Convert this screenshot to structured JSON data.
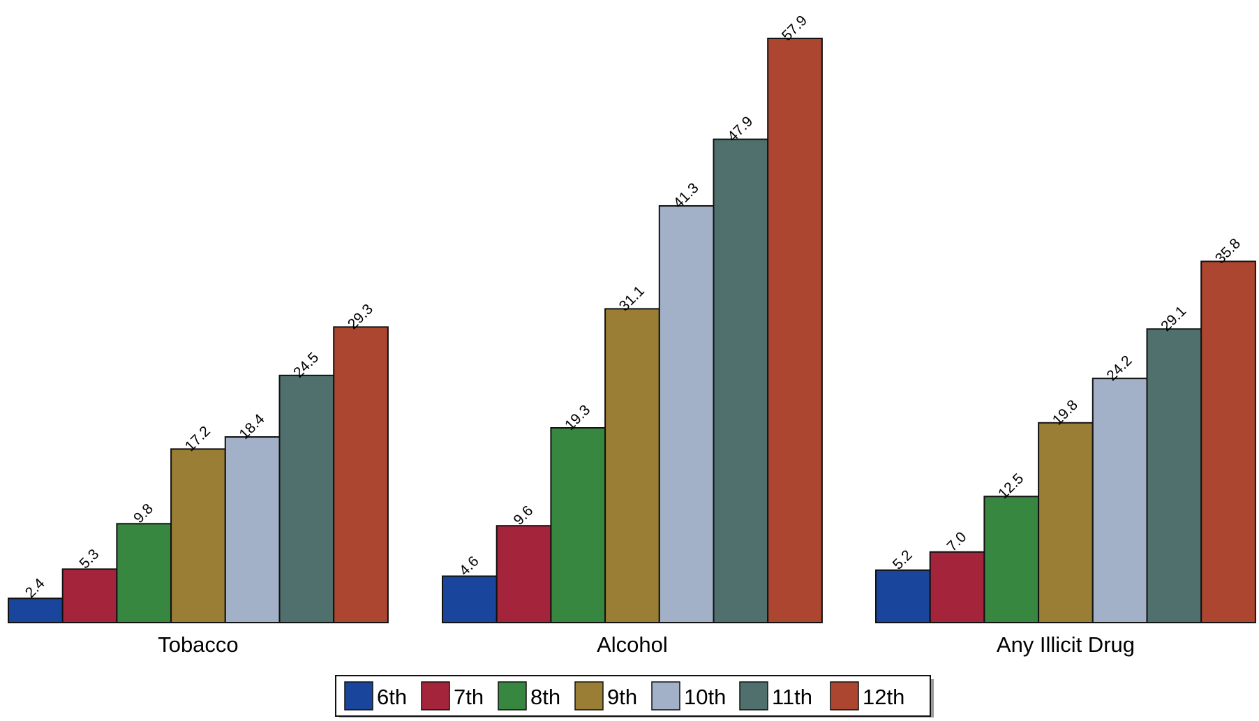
{
  "chart_data": {
    "type": "bar",
    "title": "",
    "xlabel": "",
    "ylabel": "",
    "categories": [
      "Tobacco",
      "Alcohol",
      "Any Illicit Drug"
    ],
    "series": [
      {
        "name": "6th",
        "values": [
          2.4,
          4.6,
          5.2
        ]
      },
      {
        "name": "7th",
        "values": [
          5.3,
          9.6,
          7.0
        ]
      },
      {
        "name": "8th",
        "values": [
          9.8,
          19.3,
          12.5
        ]
      },
      {
        "name": "9th",
        "values": [
          17.2,
          31.1,
          19.8
        ]
      },
      {
        "name": "10th",
        "values": [
          18.4,
          41.3,
          24.2
        ]
      },
      {
        "name": "11th",
        "values": [
          24.5,
          47.9,
          29.1
        ]
      },
      {
        "name": "12th",
        "values": [
          29.3,
          57.9,
          35.8
        ]
      }
    ],
    "value_labels": [
      [
        "2.4",
        "4.6",
        "5.2"
      ],
      [
        "5.3",
        "9.6",
        "7.0"
      ],
      [
        "9.8",
        "19.3",
        "12.5"
      ],
      [
        "17.2",
        "31.1",
        "19.8"
      ],
      [
        "18.4",
        "41.3",
        "24.2"
      ],
      [
        "24.5",
        "47.9",
        "29.1"
      ],
      [
        "29.3",
        "57.9",
        "35.8"
      ]
    ],
    "colors": [
      "#1a459c",
      "#a4253b",
      "#388741",
      "#9a7e35",
      "#a2b1c8",
      "#50706d",
      "#ac4630"
    ],
    "ylim": [
      0,
      57.9
    ],
    "grid": false,
    "legend_position": "bottom"
  }
}
